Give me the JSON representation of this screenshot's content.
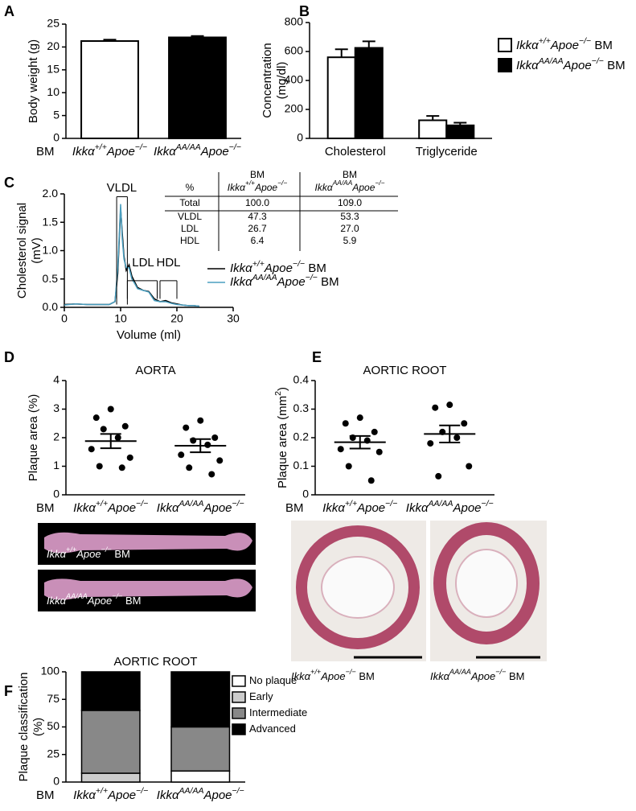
{
  "panel_labels": [
    "A",
    "B",
    "C",
    "D",
    "E",
    "F"
  ],
  "chart_data": [
    {
      "type": "bar",
      "y_label": [
        "Body weight (g)"
      ],
      "x_prefix": "BM",
      "categories": [
        "Ikkα+/+Apoe−/−",
        "IkkαAA/AAApoe−/−"
      ],
      "values": [
        21.3,
        22.1
      ],
      "errors": [
        0.3,
        0.3
      ],
      "colors": [
        "#ffffff",
        "#000000"
      ],
      "ylim": [
        0,
        25
      ],
      "yticks": [
        0,
        5,
        10,
        15,
        20,
        25
      ]
    },
    {
      "type": "grouped_bar",
      "y_label": [
        "Concentration",
        "(mg/dl)"
      ],
      "categories": [
        "Cholesterol",
        "Triglyceride"
      ],
      "series": [
        {
          "name": "Ikkα+/+Apoe−/− BM",
          "color": "#ffffff",
          "values": [
            560,
            125
          ],
          "errors": [
            55,
            30
          ]
        },
        {
          "name": "IkkαAA/AAApoe−/− BM",
          "color": "#000000",
          "values": [
            625,
            90
          ],
          "errors": [
            45,
            18
          ]
        }
      ],
      "ylim": [
        0,
        800
      ],
      "yticks": [
        0,
        200,
        400,
        600,
        800
      ],
      "legend": "outside right"
    },
    {
      "type": "line",
      "y_label": [
        "Cholesterol signal",
        "(mV)"
      ],
      "x_label": "Volume (ml)",
      "x": [
        0,
        2,
        4,
        6,
        8,
        9,
        9.5,
        10,
        10.3,
        10.6,
        11,
        11.5,
        12,
        12.5,
        13,
        14,
        15,
        16,
        17,
        18,
        19,
        20,
        21,
        22,
        23,
        24
      ],
      "series": [
        {
          "name": "Ikkα+/+Apoe−/− BM",
          "color": "#000000",
          "values": [
            0.05,
            0.06,
            0.05,
            0.05,
            0.05,
            0.1,
            0.6,
            1.75,
            1.3,
            0.9,
            0.65,
            0.75,
            0.55,
            0.45,
            0.35,
            0.3,
            0.28,
            0.15,
            0.1,
            0.12,
            0.08,
            0.06,
            0.04,
            0.03,
            0.03,
            0.02
          ]
        },
        {
          "name": "IkkαAA/AAApoe−/− BM",
          "color": "#4a9fc0",
          "values": [
            0.04,
            0.06,
            0.05,
            0.05,
            0.05,
            0.1,
            0.7,
            1.82,
            1.2,
            0.85,
            0.7,
            0.7,
            0.5,
            0.42,
            0.33,
            0.3,
            0.27,
            0.12,
            0.1,
            0.1,
            0.07,
            0.05,
            0.04,
            0.03,
            0.03,
            0.02
          ]
        }
      ],
      "xlim": [
        0,
        30
      ],
      "xticks": [
        0,
        10,
        20,
        30
      ],
      "ylim": [
        0,
        2
      ],
      "yticks": [
        {
          "value": 0,
          "label": "0.0"
        },
        {
          "value": 0.5,
          "label": "0.5"
        },
        {
          "value": 1,
          "label": "1.0"
        },
        {
          "value": 1.5,
          "label": "1.5"
        },
        {
          "value": 2,
          "label": "2.0"
        }
      ],
      "annotations": [
        "VLDL",
        "LDL",
        "HDL"
      ],
      "legend": "lower right"
    },
    {
      "type": "dot",
      "title": "AORTA",
      "y_label": [
        "Plaque area (%)"
      ],
      "x_prefix": "BM",
      "categories": [
        "Ikkα+/+Apoe−/−",
        "IkkαAA/AAApoe−/−"
      ],
      "values": [
        [
          3.0,
          2.7,
          2.4,
          2.3,
          2.0,
          1.6,
          1.3,
          1.0,
          0.95
        ],
        [
          2.6,
          2.35,
          2.0,
          1.9,
          1.75,
          1.4,
          1.2,
          0.95,
          0.72
        ]
      ],
      "means": [
        1.88,
        1.72
      ],
      "sem": [
        0.25,
        0.23
      ],
      "ylim": [
        0,
        4
      ],
      "yticks": [
        0,
        1,
        2,
        3,
        4
      ]
    },
    {
      "type": "dot",
      "title": "AORTIC ROOT",
      "y_label": [
        "Plaque area (mm2)"
      ],
      "x_prefix": "BM",
      "categories": [
        "Ikkα+/+Apoe−/−",
        "IkkαAA/AAApoe−/−"
      ],
      "values": [
        [
          0.27,
          0.25,
          0.22,
          0.2,
          0.19,
          0.16,
          0.15,
          0.1,
          0.05
        ],
        [
          0.315,
          0.305,
          0.25,
          0.22,
          0.2,
          0.18,
          0.1,
          0.065
        ]
      ],
      "means": [
        0.184,
        0.213
      ],
      "sem": [
        0.022,
        0.03
      ],
      "ylim": [
        0,
        0.4
      ],
      "yticks": [
        0,
        0.1,
        0.2,
        0.3,
        0.4
      ]
    },
    {
      "type": "stacked_bar",
      "title": "AORTIC ROOT",
      "y_label": [
        "Plaque classification",
        "(%)"
      ],
      "x_prefix": "BM",
      "categories": [
        "Ikkα+/+Apoe−/−",
        "IkkαAA/AAApoe−/−"
      ],
      "series": [
        {
          "name": "No plaque",
          "color": "#ffffff",
          "values": [
            0,
            10
          ]
        },
        {
          "name": "Early",
          "color": "#cccccc",
          "values": [
            8,
            0
          ]
        },
        {
          "name": "Intermediate",
          "color": "#888888",
          "values": [
            57,
            40
          ]
        },
        {
          "name": "Advanced",
          "color": "#000000",
          "values": [
            35,
            50
          ]
        }
      ],
      "ylim": [
        0,
        100
      ],
      "yticks": [
        0,
        25,
        50,
        75,
        100
      ],
      "legend": "outside right"
    }
  ],
  "table": {
    "header_top": [
      "BM",
      "BM"
    ],
    "columns": [
      "%",
      "Ikkα+/+Apoe−/−",
      "IkkαAA/AAApoe−/−"
    ],
    "rows": [
      [
        "Total",
        "100.0",
        "109.0"
      ],
      [
        "VLDL",
        "47.3",
        "53.3"
      ],
      [
        "LDL",
        "26.7",
        "27.0"
      ],
      [
        "HDL",
        "6.4",
        "5.9"
      ]
    ]
  },
  "images": [
    {
      "caption": "Ikkα+/+Apoe−/− BM"
    },
    {
      "caption": "IkkαAA/AAApoe−/− BM"
    },
    {
      "caption": "Ikkα+/+Apoe−/− BM"
    },
    {
      "caption": "IkkαAA/AAApoe−/− BM"
    }
  ]
}
